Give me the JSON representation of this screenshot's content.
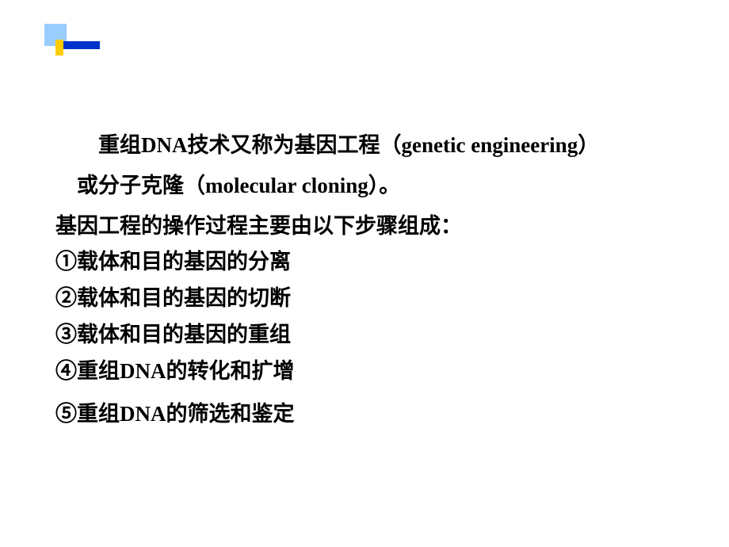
{
  "decoration": {
    "light_blue": "#99ccff",
    "dark_blue": "#0033cc",
    "yellow": "#ffcc00"
  },
  "intro": {
    "line1_part1": "重组",
    "line1_dna": "DNA",
    "line1_part2": "技术又称为基因工程（",
    "line1_en": "genetic  engineering",
    "line1_part3": "）",
    "line2_part1": "或分子克隆（",
    "line2_en": "molecular cloning",
    "line2_part2": "）。"
  },
  "steps": {
    "heading": "基因工程的操作过程主要由以下步骤组成：",
    "item1": "①载体和目的基因的分离",
    "item2": "②载体和目的基因的切断",
    "item3": "③载体和目的基因的重组",
    "item4_part1": "④重组",
    "item4_dna": "DNA",
    "item4_part2": "的转化和扩增",
    "item5_part1": "⑤重组",
    "item5_dna": "DNA",
    "item5_part2": "的筛选和鉴定"
  },
  "styling": {
    "background_color": "#ffffff",
    "text_color": "#000000",
    "font_size": 27,
    "font_weight": "bold",
    "line_height": 1.7
  }
}
